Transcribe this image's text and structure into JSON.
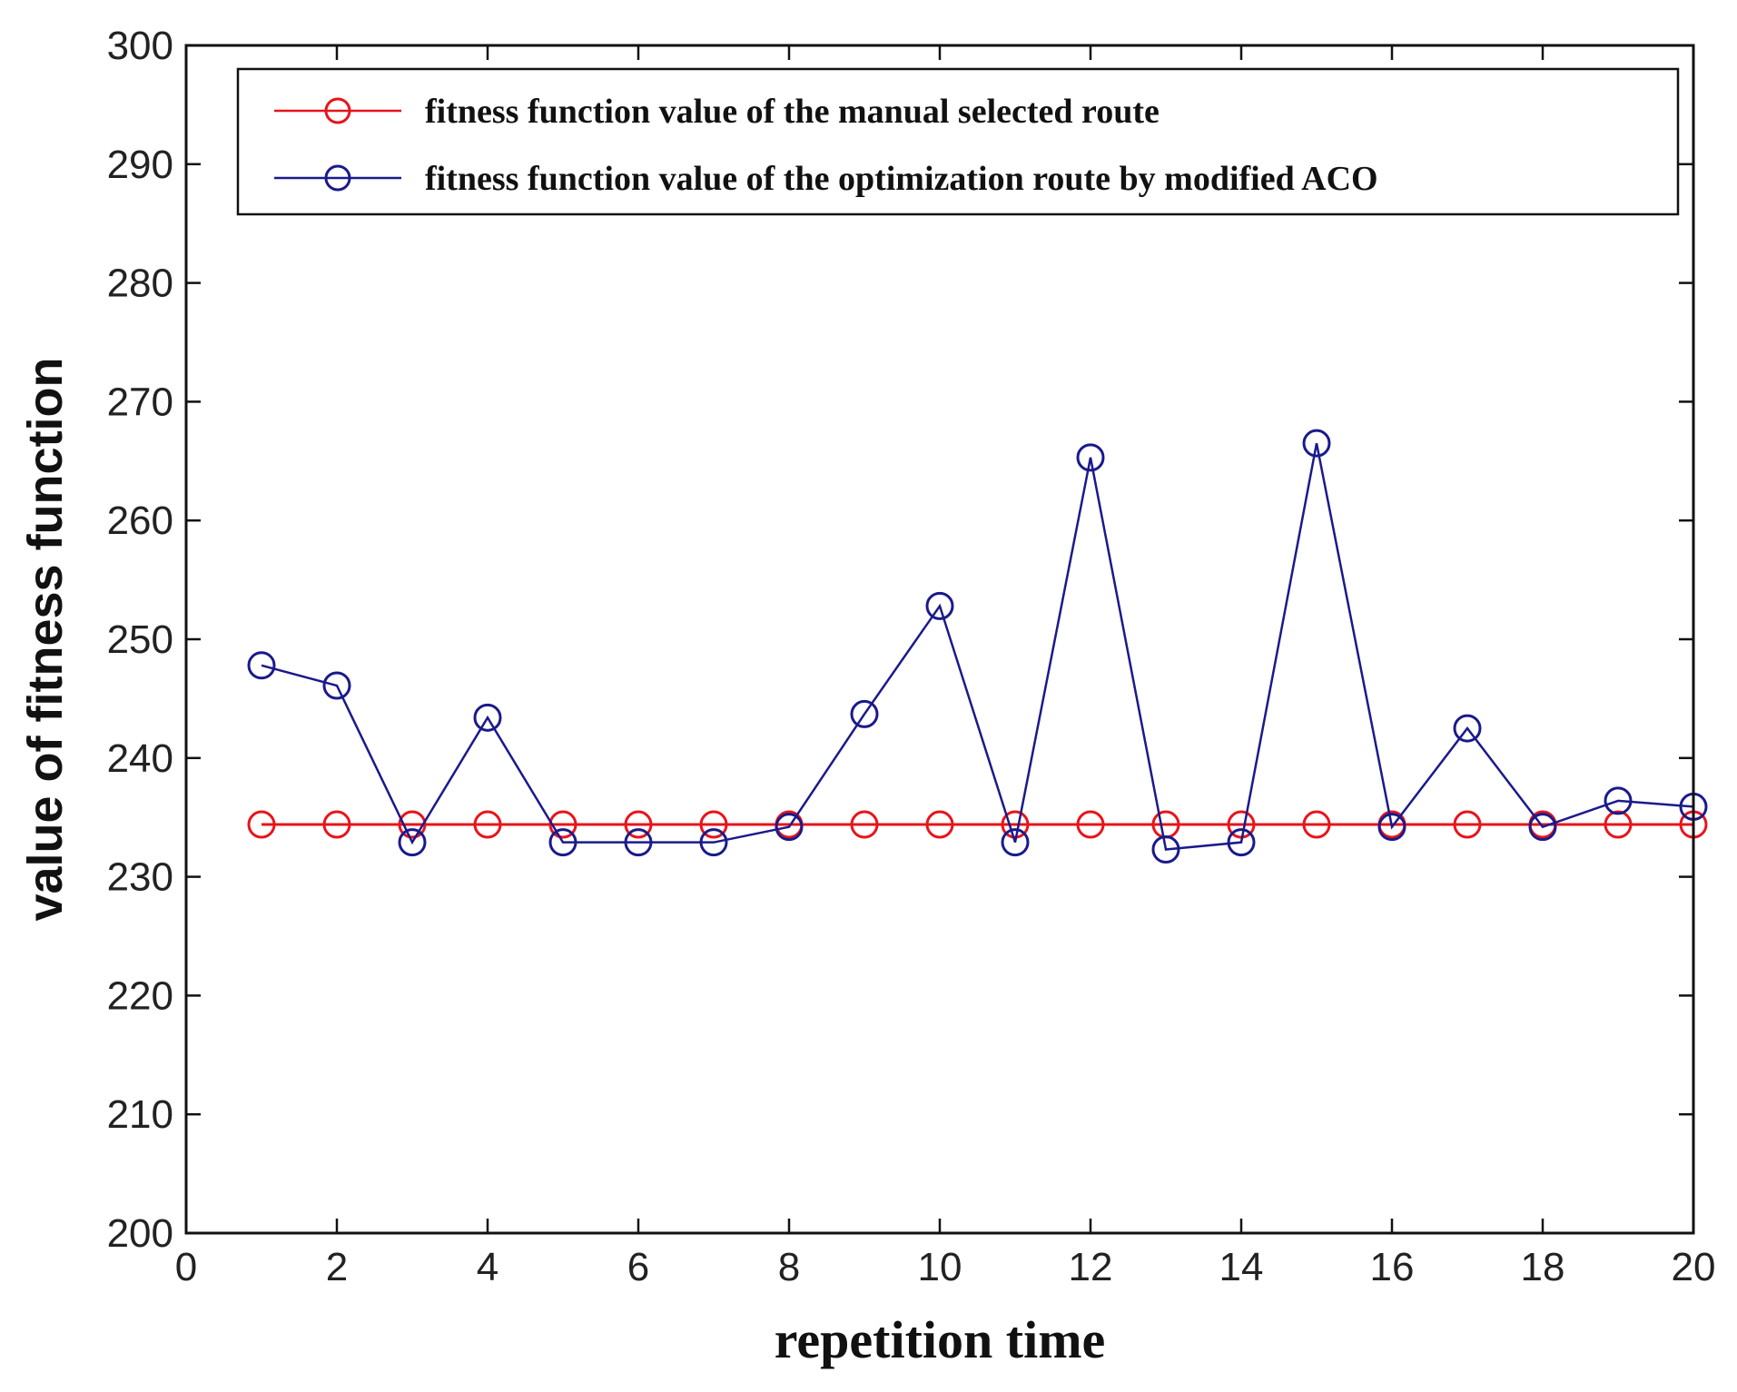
{
  "chart_data": {
    "type": "line",
    "title": "",
    "xlabel": "repetition time",
    "ylabel": "value of fitness function",
    "xlim": [
      0,
      20
    ],
    "ylim": [
      200,
      300
    ],
    "xticks": [
      0,
      2,
      4,
      6,
      8,
      10,
      12,
      14,
      16,
      18,
      20
    ],
    "yticks": [
      200,
      210,
      220,
      230,
      240,
      250,
      260,
      270,
      280,
      290,
      300
    ],
    "grid": false,
    "legend_position": "top",
    "x": [
      1,
      2,
      3,
      4,
      5,
      6,
      7,
      8,
      9,
      10,
      11,
      12,
      13,
      14,
      15,
      16,
      17,
      18,
      19,
      20
    ],
    "series": [
      {
        "name": "fitness function value of the manual selected route",
        "color": "#e8141a",
        "marker": "circle",
        "values": [
          234.4,
          234.4,
          234.4,
          234.4,
          234.4,
          234.4,
          234.4,
          234.4,
          234.4,
          234.4,
          234.4,
          234.4,
          234.4,
          234.4,
          234.4,
          234.4,
          234.4,
          234.4,
          234.4,
          234.4
        ]
      },
      {
        "name": "fitness function value of the optimization route by modified ACO",
        "color": "#1a1a8c",
        "marker": "circle",
        "values": [
          247.8,
          246.1,
          232.9,
          243.4,
          232.9,
          232.9,
          232.9,
          234.2,
          243.7,
          252.8,
          232.9,
          265.3,
          232.3,
          232.9,
          266.5,
          234.2,
          242.5,
          234.2,
          236.4,
          235.9
        ]
      }
    ]
  }
}
